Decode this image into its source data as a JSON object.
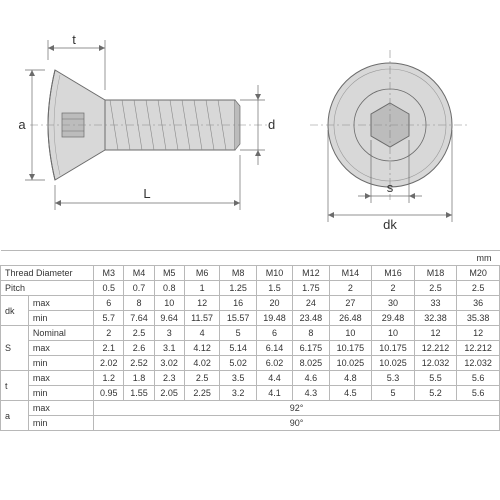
{
  "diagram": {
    "labels": {
      "t": "t",
      "a": "a",
      "d": "d",
      "L": "L",
      "s": "s",
      "dk": "dk"
    },
    "colors": {
      "outline": "#6b6b6b",
      "shade_light": "#d8d8d8",
      "shade_mid": "#bcbcbc",
      "shade_dark": "#9a9a9a",
      "dim_line": "#6b6b6b",
      "center_line": "#888888",
      "background": "#ffffff"
    },
    "stroke_width": 1,
    "font_size_label": 13
  },
  "table": {
    "unit": "mm",
    "columns": [
      "M3",
      "M4",
      "M5",
      "M6",
      "M8",
      "M10",
      "M12",
      "M14",
      "M16",
      "M18",
      "M20"
    ],
    "header_label": "Thread Diameter",
    "groups": [
      {
        "label": "Pitch",
        "rows": [
          {
            "sub": "",
            "vals": [
              "0.5",
              "0.7",
              "0.8",
              "1",
              "1.25",
              "1.5",
              "1.75",
              "2",
              "2",
              "2.5",
              "2.5"
            ]
          }
        ]
      },
      {
        "label": "dk",
        "rows": [
          {
            "sub": "max",
            "vals": [
              "6",
              "8",
              "10",
              "12",
              "16",
              "20",
              "24",
              "27",
              "30",
              "33",
              "36"
            ]
          },
          {
            "sub": "min",
            "vals": [
              "5.7",
              "7.64",
              "9.64",
              "11.57",
              "15.57",
              "19.48",
              "23.48",
              "26.48",
              "29.48",
              "32.38",
              "35.38"
            ]
          }
        ]
      },
      {
        "label": "S",
        "rows": [
          {
            "sub": "Nominal",
            "vals": [
              "2",
              "2.5",
              "3",
              "4",
              "5",
              "6",
              "8",
              "10",
              "10",
              "12",
              "12"
            ]
          },
          {
            "sub": "max",
            "vals": [
              "2.1",
              "2.6",
              "3.1",
              "4.12",
              "5.14",
              "6.14",
              "6.175",
              "10.175",
              "10.175",
              "12.212",
              "12.212"
            ]
          },
          {
            "sub": "min",
            "vals": [
              "2.02",
              "2.52",
              "3.02",
              "4.02",
              "5.02",
              "6.02",
              "8.025",
              "10.025",
              "10.025",
              "12.032",
              "12.032"
            ]
          }
        ]
      },
      {
        "label": "t",
        "rows": [
          {
            "sub": "max",
            "vals": [
              "1.2",
              "1.8",
              "2.3",
              "2.5",
              "3.5",
              "4.4",
              "4.6",
              "4.8",
              "5.3",
              "5.5",
              "5.6"
            ]
          },
          {
            "sub": "min",
            "vals": [
              "0.95",
              "1.55",
              "2.05",
              "2.25",
              "3.2",
              "4.1",
              "4.3",
              "4.5",
              "5",
              "5.2",
              "5.6"
            ]
          }
        ]
      },
      {
        "label": "a",
        "rows": [
          {
            "sub": "max",
            "span": true,
            "val": "92°"
          },
          {
            "sub": "min",
            "span": true,
            "val": "90°"
          }
        ]
      }
    ],
    "colors": {
      "border": "#b8b8b8",
      "text": "#333333",
      "background": "#ffffff"
    },
    "font_size": 9
  }
}
